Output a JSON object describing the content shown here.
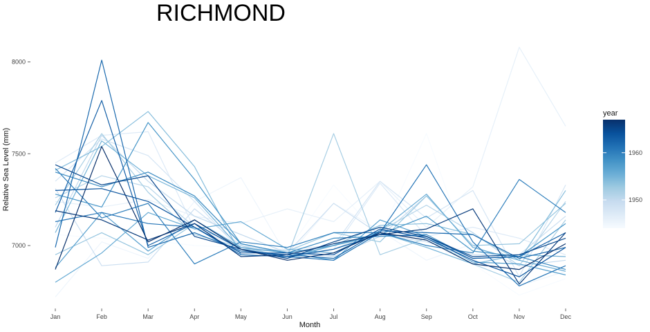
{
  "chart_data": {
    "type": "line",
    "title": "RICHMOND",
    "xlabel": "Month",
    "ylabel": "Relative Sea Level (mm)",
    "categories": [
      "Jan",
      "Feb",
      "Mar",
      "Apr",
      "May",
      "Jun",
      "Jul",
      "Aug",
      "Sep",
      "Oct",
      "Nov",
      "Dec"
    ],
    "ylim": [
      6680,
      8130
    ],
    "yticks": [
      7000,
      7500,
      8000
    ],
    "grid": false,
    "legend": {
      "title": "year",
      "position": "right",
      "type": "gradient",
      "ticks": [
        1950,
        1960
      ],
      "range": [
        1944,
        1967
      ],
      "color_low": "#f7fbff",
      "color_high": "#08306b"
    },
    "series": [
      {
        "year": 1944,
        "values": [
          7060,
          7040,
          7030,
          7000,
          6990,
          6970,
          7330,
          7050,
          7610,
          6900,
          6730,
          6820
        ]
      },
      {
        "year": 1945,
        "values": [
          6720,
          7020,
          6930,
          7240,
          7370,
          6940,
          7230,
          7080,
          6920,
          7010,
          6780,
          6860
        ]
      },
      {
        "year": 1946,
        "values": [
          7240,
          7210,
          7250,
          7160,
          7120,
          7200,
          7130,
          7350,
          7100,
          7320,
          8080,
          7650
        ]
      },
      {
        "year": 1947,
        "values": [
          7450,
          7600,
          7620,
          7090,
          6990,
          6940,
          6980,
          7340,
          7050,
          7100,
          7040,
          6950
        ]
      },
      {
        "year": 1948,
        "values": [
          7350,
          7580,
          7490,
          7240,
          6970,
          6980,
          7000,
          7350,
          7150,
          7300,
          6830,
          7330
        ]
      },
      {
        "year": 1949,
        "values": [
          7310,
          6890,
          6910,
          7200,
          7000,
          6960,
          7230,
          7060,
          7020,
          6950,
          6950,
          7160
        ]
      },
      {
        "year": 1950,
        "values": [
          7100,
          7600,
          7350,
          7160,
          7060,
          6960,
          6940,
          7050,
          7270,
          7000,
          6890,
          6920
        ]
      },
      {
        "year": 1951,
        "values": [
          7260,
          7380,
          7320,
          7100,
          7000,
          6930,
          6980,
          7080,
          7220,
          7070,
          6890,
          7240
        ]
      },
      {
        "year": 1952,
        "values": [
          7220,
          7610,
          7290,
          7060,
          6990,
          6940,
          7610,
          6950,
          7040,
          6900,
          6800,
          7140
        ]
      },
      {
        "year": 1953,
        "values": [
          6950,
          7070,
          6950,
          7120,
          6980,
          6970,
          7070,
          7020,
          7270,
          7000,
          7010,
          7230
        ]
      },
      {
        "year": 1954,
        "values": [
          7410,
          7540,
          7730,
          7430,
          6950,
          6940,
          7000,
          7110,
          7120,
          7060,
          6920,
          7300
        ]
      },
      {
        "year": 1955,
        "values": [
          7070,
          7570,
          7380,
          7260,
          6980,
          6930,
          7000,
          7070,
          6990,
          6900,
          6950,
          6940
        ]
      },
      {
        "year": 1956,
        "values": [
          6800,
          6960,
          7180,
          7090,
          7130,
          6980,
          6960,
          7080,
          7280,
          6990,
          6920,
          6860
        ]
      },
      {
        "year": 1957,
        "values": [
          6880,
          7180,
          6970,
          7140,
          6990,
          6960,
          6920,
          7140,
          7050,
          6910,
          6900,
          6840
        ]
      },
      {
        "year": 1958,
        "values": [
          7280,
          7210,
          7670,
          7360,
          7010,
          6960,
          7000,
          7060,
          7160,
          6970,
          6940,
          7120
        ]
      },
      {
        "year": 1959,
        "values": [
          7400,
          7320,
          7400,
          7270,
          7010,
          6960,
          7040,
          7050,
          7060,
          6930,
          6940,
          6870
        ]
      },
      {
        "year": 1960,
        "values": [
          7420,
          7150,
          7230,
          6900,
          7020,
          6990,
          7070,
          7070,
          7000,
          6960,
          7360,
          7180
        ]
      },
      {
        "year": 1961,
        "values": [
          7130,
          7180,
          7120,
          7100,
          6950,
          6940,
          6920,
          7070,
          7440,
          7020,
          6780,
          6890
        ]
      },
      {
        "year": 1962,
        "values": [
          6990,
          8010,
          6990,
          7070,
          6970,
          6950,
          6930,
          7080,
          7070,
          7060,
          6930,
          6990
        ]
      },
      {
        "year": 1963,
        "values": [
          7180,
          7790,
          7000,
          7120,
          6980,
          6940,
          6980,
          7060,
          7050,
          6930,
          6940,
          7070
        ]
      },
      {
        "year": 1964,
        "values": [
          7300,
          7310,
          7240,
          7100,
          6960,
          6960,
          6950,
          7090,
          7040,
          6920,
          6830,
          6990
        ]
      },
      {
        "year": 1965,
        "values": [
          7440,
          7330,
          7380,
          7050,
          6980,
          6930,
          7020,
          7100,
          7050,
          6940,
          6950,
          7040
        ]
      },
      {
        "year": 1966,
        "values": [
          7190,
          7140,
          7030,
          7120,
          6940,
          6950,
          7010,
          7060,
          7090,
          7200,
          6790,
          7070
        ]
      },
      {
        "year": 1967,
        "values": [
          6870,
          7540,
          7020,
          7140,
          6980,
          6920,
          6960,
          7070,
          7030,
          6900,
          6870,
          7010
        ]
      }
    ]
  }
}
